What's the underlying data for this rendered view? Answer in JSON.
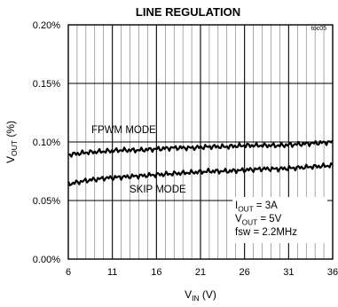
{
  "figure_id": "toc05",
  "chart_data": {
    "type": "line",
    "title": "LINE REGULATION",
    "ylabel": {
      "main": "V",
      "sub": "OUT",
      "rest": " (%)"
    },
    "xlabel": {
      "main": "V",
      "sub": "IN",
      "rest": " (V)"
    },
    "xlim": [
      6,
      36
    ],
    "ylim": [
      0.0,
      0.2
    ],
    "x_ticks": [
      6,
      11,
      16,
      21,
      26,
      31,
      36
    ],
    "x_tick_labels": [
      "6",
      "11",
      "16",
      "21",
      "26",
      "31",
      "36"
    ],
    "y_ticks": [
      0.0,
      0.05,
      0.1,
      0.15,
      0.2
    ],
    "y_tick_labels": [
      "0.00%",
      "0.05%",
      "0.10%",
      "0.15%",
      "0.20%"
    ],
    "grid": true,
    "series": [
      {
        "name": "FPWM MODE",
        "x": [
          6,
          8,
          10,
          12,
          14,
          16,
          18,
          20,
          22,
          24,
          26,
          28,
          30,
          32,
          34,
          36
        ],
        "values": [
          0.089,
          0.091,
          0.092,
          0.093,
          0.093,
          0.094,
          0.095,
          0.095,
          0.096,
          0.096,
          0.097,
          0.097,
          0.097,
          0.098,
          0.099,
          0.1
        ]
      },
      {
        "name": "SKIP MODE",
        "x": [
          6,
          8,
          10,
          12,
          14,
          16,
          18,
          20,
          22,
          24,
          26,
          28,
          30,
          32,
          34,
          36
        ],
        "values": [
          0.064,
          0.067,
          0.069,
          0.07,
          0.071,
          0.072,
          0.073,
          0.074,
          0.075,
          0.075,
          0.076,
          0.077,
          0.077,
          0.078,
          0.079,
          0.08
        ]
      }
    ],
    "annotations": [
      {
        "main": "I",
        "sub": "OUT",
        "rest": " = 3A"
      },
      {
        "main": "V",
        "sub": "OUT",
        "rest": " = 5V"
      },
      {
        "main": "fsw = 2.2MHz",
        "sub": "",
        "rest": ""
      }
    ]
  }
}
